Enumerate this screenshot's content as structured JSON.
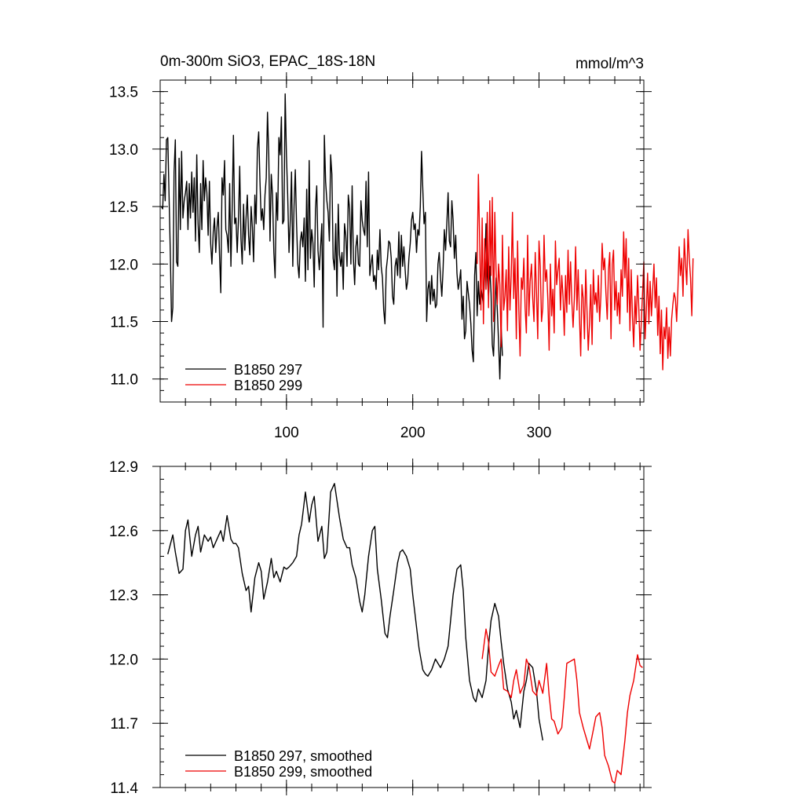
{
  "chart_data": [
    {
      "type": "line",
      "title": "0m-300m SiO3, EPAC_18S-18N",
      "units": "mmol/m^3",
      "xlim": [
        0,
        383
      ],
      "ylim": [
        10.8,
        13.6
      ],
      "xticks": [
        100,
        200,
        300
      ],
      "xtick_labels": [
        "100",
        "200",
        "300"
      ],
      "yticks": [
        11.0,
        11.5,
        12.0,
        12.5,
        13.0,
        13.5
      ],
      "ytick_labels": [
        "11.0",
        "11.5",
        "12.0",
        "12.5",
        "13.0",
        "13.5"
      ],
      "legend_position": "bottom-left",
      "series": [
        {
          "name": "B1850 297",
          "color": "#000000",
          "x_start": 1,
          "values": [
            12.5,
            12.48,
            12.78,
            12.55,
            13.08,
            13.1,
            12.6,
            12.1,
            11.5,
            11.62,
            12.8,
            13.08,
            12.02,
            11.98,
            12.92,
            12.3,
            12.98,
            12.4,
            12.55,
            12.62,
            12.72,
            12.3,
            12.7,
            12.4,
            12.8,
            12.45,
            12.75,
            12.2,
            12.95,
            12.35,
            12.1,
            12.7,
            12.3,
            12.9,
            12.55,
            12.75,
            12.62,
            12.25,
            12.72,
            12.18,
            12.0,
            12.28,
            12.4,
            12.1,
            12.32,
            12.45,
            12.08,
            11.75,
            12.75,
            12.6,
            12.9,
            12.3,
            12.25,
            12.1,
            12.7,
            11.98,
            12.48,
            13.12,
            12.35,
            12.4,
            12.1,
            12.38,
            12.85,
            12.22,
            12.0,
            12.52,
            12.12,
            12.4,
            12.6,
            12.25,
            12.08,
            12.5,
            12.32,
            12.02,
            12.6,
            12.35,
            13.0,
            13.15,
            12.72,
            12.38,
            12.48,
            12.3,
            12.6,
            12.75,
            13.32,
            12.95,
            12.2,
            12.78,
            12.6,
            12.1,
            11.88,
            12.62,
            12.38,
            13.1,
            12.95,
            13.28,
            12.35,
            12.38,
            13.48,
            12.95,
            12.6,
            12.1,
            12.38,
            12.8,
            11.98,
            12.5,
            12.82,
            12.35,
            12.0,
            11.88,
            12.2,
            12.28,
            12.15,
            12.4,
            11.85,
            12.65,
            11.95,
            12.9,
            12.05,
            12.3,
            12.18,
            11.8,
            12.48,
            12.68,
            12.12,
            11.95,
            12.15,
            12.35,
            11.45,
            13.12,
            12.72,
            12.55,
            12.45,
            12.2,
            12.95,
            12.78,
            12.05,
            11.95,
            12.35,
            11.72,
            12.52,
            12.08,
            11.98,
            12.1,
            11.78,
            12.35,
            12.25,
            11.98,
            12.6,
            12.48,
            12.0,
            12.68,
            12.05,
            11.82,
            12.15,
            12.25,
            12.0,
            11.98,
            12.55,
            12.38,
            12.3,
            12.25,
            12.72,
            12.15,
            12.8,
            11.9,
            12.0,
            12.08,
            11.85,
            11.9,
            11.78,
            12.12,
            11.95,
            12.3,
            11.98,
            11.88,
            11.6,
            11.48,
            11.95,
            12.05,
            12.2,
            12.18,
            12.05,
            11.72,
            11.65,
            11.98,
            12.05,
            11.9,
            12.28,
            11.88,
            12.25,
            11.98,
            12.15,
            11.95,
            11.78,
            11.85,
            12.05,
            12.18,
            12.38,
            12.45,
            12.3,
            12.35,
            12.1,
            12.3,
            12.25,
            12.5,
            12.98,
            12.65,
            12.35,
            12.45,
            11.5,
            11.78,
            11.85,
            11.65,
            11.9,
            11.68,
            11.78,
            11.62,
            11.65,
            12.0,
            12.1,
            11.88,
            11.72,
            11.95,
            12.3,
            12.12,
            12.35,
            12.62,
            12.2,
            12.15,
            12.55,
            12.38,
            12.05,
            12.25,
            11.92,
            11.78,
            11.85,
            11.95,
            11.52,
            11.72,
            11.35,
            11.42,
            11.85,
            11.75,
            11.65,
            11.48,
            11.25,
            11.15,
            11.9,
            12.1,
            11.55,
            11.85,
            11.65,
            11.8,
            11.72,
            11.65,
            11.92,
            12.35,
            11.9,
            11.72,
            11.98,
            11.75,
            11.3,
            11.2,
            11.55,
            11.88,
            11.6,
            11.32,
            11.0,
            11.45,
            11.2
          ]
        },
        {
          "name": "B1850 299",
          "color": "#ee0000",
          "x_start": 251,
          "values": [
            12.0,
            12.78,
            12.2,
            11.6,
            12.4,
            11.48,
            12.22,
            11.78,
            12.45,
            11.62,
            12.55,
            11.9,
            12.58,
            11.5,
            12.45,
            11.95,
            11.65,
            12.0,
            11.82,
            11.28,
            12.25,
            11.6,
            11.72,
            11.95,
            11.42,
            12.15,
            11.6,
            11.9,
            12.45,
            11.7,
            12.05,
            11.35,
            12.2,
            11.6,
            11.2,
            11.88,
            11.78,
            12.05,
            11.62,
            11.4,
            12.25,
            11.55,
            11.85,
            12.0,
            11.7,
            11.5,
            12.1,
            11.75,
            11.35,
            12.2,
            11.98,
            11.5,
            11.62,
            12.25,
            11.85,
            11.95,
            11.68,
            11.25,
            12.0,
            11.55,
            11.78,
            11.4,
            12.2,
            11.82,
            11.95,
            12.05,
            11.6,
            11.9,
            11.72,
            11.38,
            11.9,
            11.58,
            12.12,
            11.65,
            12.02,
            11.68,
            11.45,
            11.7,
            12.15,
            11.6,
            11.95,
            11.55,
            11.2,
            11.82,
            11.7,
            11.35,
            11.95,
            11.6,
            11.25,
            11.48,
            11.82,
            11.3,
            11.95,
            11.65,
            11.75,
            11.58,
            11.9,
            11.5,
            11.72,
            12.18,
            11.95,
            12.05,
            11.75,
            11.52,
            11.95,
            12.1,
            11.35,
            12.0,
            12.12,
            11.6,
            11.85,
            11.55,
            11.75,
            11.48,
            11.95,
            11.72,
            12.28,
            11.88,
            12.22,
            11.58,
            12.05,
            11.42,
            11.95,
            11.55,
            11.28,
            11.72,
            11.48,
            11.9,
            11.62,
            11.25,
            11.5,
            11.75,
            12.02,
            11.35,
            11.6,
            11.92,
            11.48,
            11.85,
            11.55,
            11.78,
            12.0,
            11.62,
            11.88,
            11.38,
            11.72,
            11.22,
            11.6,
            11.08,
            11.45,
            11.35,
            11.62,
            11.18,
            11.45,
            11.2,
            11.52,
            11.65,
            11.75,
            11.7,
            11.5,
            11.78,
            12.15,
            11.9,
            12.05,
            11.72,
            12.22,
            12.0,
            11.82,
            12.3,
            12.05,
            11.88,
            11.55,
            12.05
          ]
        }
      ]
    },
    {
      "type": "line",
      "title": "",
      "units": "",
      "xlim": [
        0,
        383
      ],
      "ylim": [
        11.4,
        12.9
      ],
      "xticks": [
        100,
        200,
        300
      ],
      "xtick_labels": [],
      "yticks": [
        11.4,
        11.7,
        12.0,
        12.3,
        12.6,
        12.9
      ],
      "ytick_labels": [
        "11.4",
        "11.7",
        "12.0",
        "12.3",
        "12.6",
        "12.9"
      ],
      "legend_position": "bottom-left",
      "series": [
        {
          "name": "B1850 297, smoothed",
          "color": "#000000",
          "x": [
            6,
            10,
            12,
            15,
            18,
            20,
            22,
            25,
            28,
            30,
            32,
            35,
            38,
            40,
            42,
            45,
            48,
            50,
            53,
            56,
            58,
            60,
            62,
            65,
            68,
            70,
            72,
            75,
            78,
            80,
            82,
            85,
            88,
            90,
            92,
            95,
            98,
            100,
            102,
            105,
            108,
            110,
            112,
            115,
            118,
            120,
            122,
            125,
            128,
            130,
            132,
            135,
            138,
            140,
            142,
            145,
            148,
            150,
            152,
            155,
            158,
            160,
            162,
            165,
            168,
            170,
            172,
            175,
            178,
            180,
            182,
            185,
            188,
            190,
            192,
            195,
            198,
            200,
            202,
            205,
            208,
            210,
            212,
            215,
            218,
            220,
            222,
            225,
            228,
            230,
            232,
            235,
            238,
            240,
            242,
            245,
            248,
            250,
            252,
            255,
            258,
            260,
            262,
            265,
            268,
            270,
            272,
            275,
            278,
            280,
            282,
            285,
            288,
            290,
            292,
            295,
            298,
            300,
            303
          ],
          "y": [
            12.49,
            12.58,
            12.5,
            12.4,
            12.42,
            12.6,
            12.65,
            12.48,
            12.58,
            12.62,
            12.5,
            12.58,
            12.55,
            12.57,
            12.52,
            12.56,
            12.6,
            12.55,
            12.67,
            12.56,
            12.54,
            12.54,
            12.52,
            12.4,
            12.32,
            12.34,
            12.22,
            12.38,
            12.45,
            12.41,
            12.28,
            12.36,
            12.47,
            12.38,
            12.41,
            12.36,
            12.43,
            12.42,
            12.43,
            12.45,
            12.48,
            12.58,
            12.63,
            12.78,
            12.64,
            12.72,
            12.76,
            12.55,
            12.62,
            12.47,
            12.5,
            12.78,
            12.82,
            12.74,
            12.66,
            12.56,
            12.52,
            12.52,
            12.44,
            12.38,
            12.27,
            12.22,
            12.3,
            12.48,
            12.6,
            12.62,
            12.42,
            12.28,
            12.12,
            12.1,
            12.2,
            12.32,
            12.45,
            12.5,
            12.51,
            12.48,
            12.42,
            12.3,
            12.2,
            12.05,
            11.95,
            11.93,
            11.92,
            11.95,
            12.0,
            11.98,
            11.96,
            12.0,
            12.06,
            12.18,
            12.3,
            12.42,
            12.44,
            12.32,
            12.1,
            11.9,
            11.82,
            11.8,
            11.86,
            11.82,
            11.9,
            12.06,
            12.18,
            12.26,
            12.2,
            12.08,
            11.98,
            11.86,
            11.8,
            11.72,
            11.76,
            11.68,
            11.85,
            11.9,
            11.98,
            11.96,
            11.85,
            11.72,
            11.62
          ]
        },
        {
          "name": "B1850 299, smoothed",
          "color": "#ee0000",
          "x": [
            255,
            258,
            260,
            262,
            265,
            268,
            270,
            272,
            275,
            278,
            280,
            282,
            285,
            288,
            290,
            292,
            295,
            298,
            300,
            303,
            306,
            308,
            310,
            312,
            315,
            318,
            320,
            322,
            325,
            328,
            330,
            332,
            335,
            338,
            340,
            342,
            345,
            348,
            350,
            352,
            355,
            358,
            360,
            362,
            365,
            368,
            370,
            372,
            375,
            378,
            380,
            382
          ],
          "y": [
            12.0,
            12.14,
            12.08,
            11.94,
            11.92,
            11.97,
            12.0,
            11.86,
            11.85,
            11.82,
            11.9,
            11.95,
            11.84,
            11.88,
            12.0,
            11.97,
            11.85,
            11.83,
            11.9,
            11.84,
            11.98,
            11.83,
            11.72,
            11.71,
            11.65,
            11.68,
            11.82,
            11.98,
            11.99,
            12.0,
            11.9,
            11.75,
            11.68,
            11.62,
            11.58,
            11.64,
            11.73,
            11.75,
            11.68,
            11.55,
            11.5,
            11.43,
            11.42,
            11.48,
            11.46,
            11.62,
            11.75,
            11.83,
            11.9,
            12.02,
            11.97,
            11.96
          ]
        }
      ]
    }
  ]
}
